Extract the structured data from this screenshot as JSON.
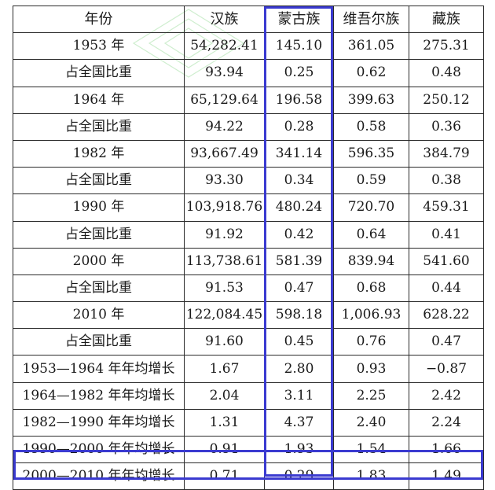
{
  "table": {
    "headers": [
      "年份",
      "汉族",
      "蒙古族",
      "维吾尔族",
      "藏族"
    ],
    "rows": [
      [
        "1953 年",
        "54,282.41",
        "145.10",
        "361.05",
        "275.31"
      ],
      [
        "占全国比重",
        "93.94",
        "0.25",
        "0.62",
        "0.48"
      ],
      [
        "1964 年",
        "65,129.64",
        "196.58",
        "399.63",
        "250.12"
      ],
      [
        "占全国比重",
        "94.22",
        "0.28",
        "0.58",
        "0.36"
      ],
      [
        "1982 年",
        "93,667.49",
        "341.14",
        "596.35",
        "384.79"
      ],
      [
        "占全国比重",
        "93.30",
        "0.34",
        "0.59",
        "0.38"
      ],
      [
        "1990 年",
        "103,918.76",
        "480.24",
        "720.70",
        "459.31"
      ],
      [
        "占全国比重",
        "91.92",
        "0.42",
        "0.64",
        "0.41"
      ],
      [
        "2000 年",
        "113,738.61",
        "581.39",
        "839.94",
        "541.60"
      ],
      [
        "占全国比重",
        "91.53",
        "0.47",
        "0.68",
        "0.44"
      ],
      [
        "2010 年",
        "122,084.45",
        "598.18",
        "1,006.93",
        "628.22"
      ],
      [
        "占全国比重",
        "91.60",
        "0.45",
        "0.76",
        "0.47"
      ],
      [
        "1953—1964 年年均增长",
        "1.67",
        "2.80",
        "0.93",
        "−0.87"
      ],
      [
        "1964—1982 年年均增长",
        "2.04",
        "3.11",
        "2.25",
        "2.42"
      ],
      [
        "1982—1990 年年均增长",
        "1.31",
        "4.37",
        "2.40",
        "2.24"
      ],
      [
        "1990—2000 年年均增长",
        "0.91",
        "1.93",
        "1.54",
        "1.66"
      ],
      [
        "2000—2010 年年均增长",
        "0.71",
        "0.29",
        "1.83",
        "1.49"
      ]
    ]
  },
  "highlight": {
    "color": "#3a3ad0",
    "column_header": "蒙古族",
    "row_label": "2000—2010 年年均增长"
  }
}
